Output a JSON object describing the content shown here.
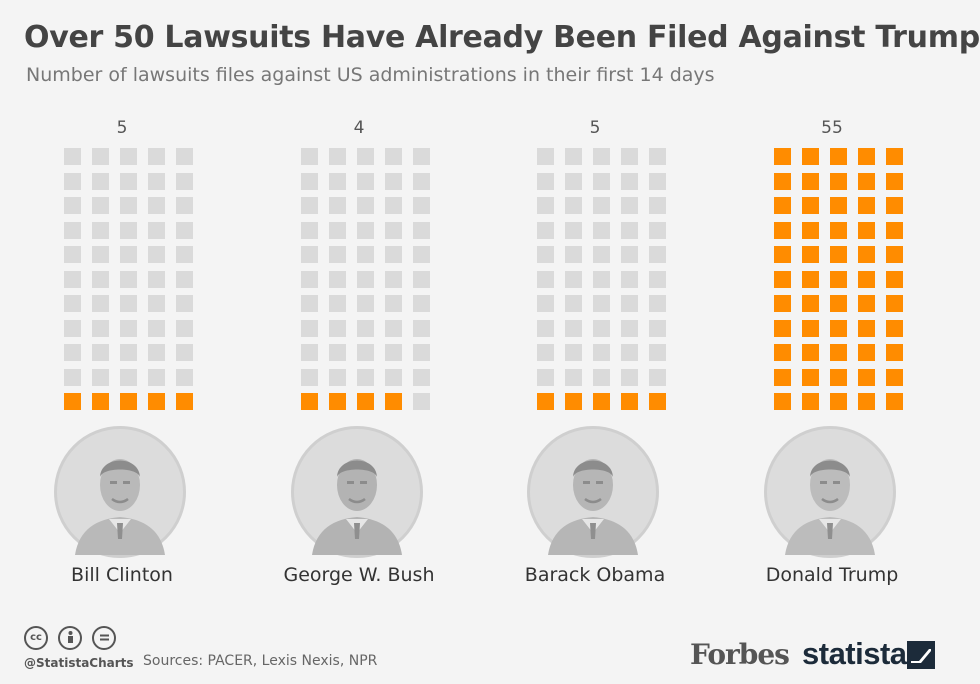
{
  "header": {
    "title": "Over 50 Lawsuits Have Already Been Filed Against Trump",
    "subtitle": "Number of lawsuits files against US administrations in their first 14 days"
  },
  "colors": {
    "highlight": "#ff8c00",
    "empty": "#dadada"
  },
  "chart_data": {
    "type": "bar",
    "title": "Over 50 Lawsuits Have Already Been Filed Against Trump",
    "subtitle": "Number of lawsuits files against US administrations in their first 14 days",
    "categories": [
      "Bill Clinton",
      "George W. Bush",
      "Barack Obama",
      "Donald Trump"
    ],
    "values": [
      5,
      4,
      5,
      55
    ],
    "value_labels": [
      "5",
      "4",
      "5",
      "55"
    ],
    "unit_per_square": 1,
    "grid_capacity": 55,
    "xlabel": "",
    "ylabel": ""
  },
  "footer": {
    "icons": [
      "cc-icon",
      "attribution-icon",
      "no-derivatives-icon"
    ],
    "handle": "@StatistaCharts",
    "source": "Sources: PACER, Lexis Nexis, NPR",
    "logos": [
      "Forbes",
      "statista"
    ]
  }
}
